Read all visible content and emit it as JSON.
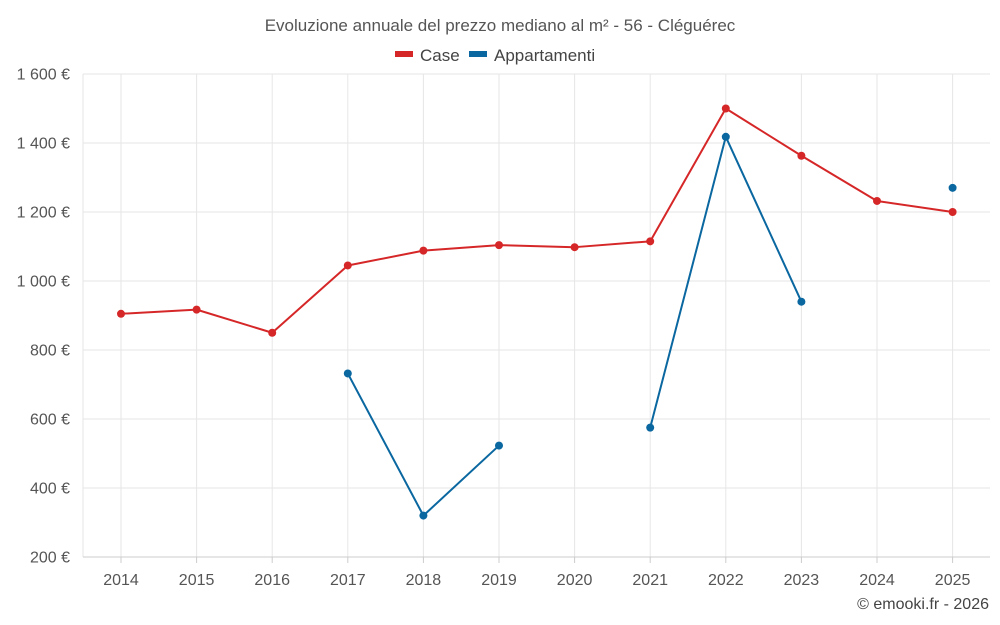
{
  "chart_data": {
    "type": "line",
    "title": "Evoluzione annuale del prezzo mediano al m² - 56 - Cléguérec",
    "categories": [
      "2014",
      "2015",
      "2016",
      "2017",
      "2018",
      "2019",
      "2020",
      "2021",
      "2022",
      "2023",
      "2024",
      "2025"
    ],
    "series": [
      {
        "name": "Case",
        "color": "#d62728",
        "values": [
          905,
          917,
          850,
          1045,
          1088,
          1104,
          1098,
          1115,
          1500,
          1363,
          1232,
          1200
        ]
      },
      {
        "name": "Appartamenti",
        "color": "#0a67a0",
        "values": [
          null,
          null,
          null,
          732,
          320,
          523,
          null,
          575,
          1418,
          940,
          null,
          1270
        ]
      }
    ],
    "y_ticks": [
      200,
      400,
      600,
      800,
      1000,
      1200,
      1400,
      1600
    ],
    "y_tick_labels": [
      "200 €",
      "400 €",
      "600 €",
      "800 €",
      "1 000 €",
      "1 200 €",
      "1 400 €",
      "1 600 €"
    ],
    "ylim": [
      200,
      1600
    ],
    "grid": true,
    "legend_position": "top-center",
    "xlabel": "",
    "ylabel": ""
  },
  "credit": "© emooki.fr - 2026"
}
